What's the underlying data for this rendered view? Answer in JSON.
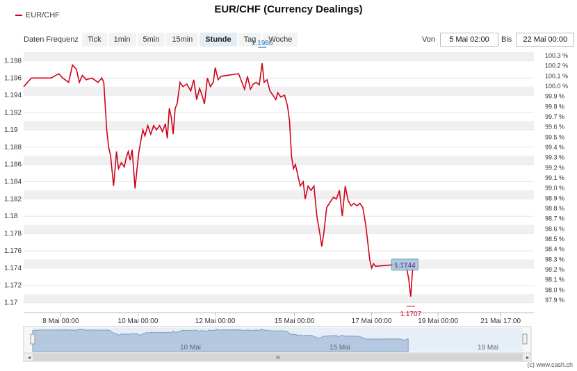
{
  "title": "EUR/CHF (Currency Dealings)",
  "legend": {
    "label": "EUR/CHF",
    "color": "#d0021b"
  },
  "frequency": {
    "label": "Daten Frequenz",
    "options": [
      "Tick",
      "1min",
      "5min",
      "15min",
      "Stunde",
      "Tag",
      "Woche"
    ],
    "active": "Stunde"
  },
  "range": {
    "from_label": "Von",
    "from_value": "5 Mai 02:00",
    "to_label": "Bis",
    "to_value": "22 Mai 00:00"
  },
  "copyright": "(c) www.cash.ch",
  "navigator": {
    "labels": [
      "10 Mai",
      "15 Mai",
      "19 Mai"
    ],
    "scroll_grip": "III"
  },
  "chart_data": {
    "type": "line",
    "title": "EUR/CHF (Currency Dealings)",
    "series": [
      {
        "name": "EUR/CHF",
        "color": "#d0021b",
        "points": [
          [
            0.0,
            1.195
          ],
          [
            0.4,
            1.196
          ],
          [
            0.8,
            1.196
          ],
          [
            1.4,
            1.196
          ],
          [
            1.8,
            1.1965
          ],
          [
            2.0,
            1.196
          ],
          [
            2.3,
            1.1955
          ],
          [
            2.5,
            1.1975
          ],
          [
            2.7,
            1.197
          ],
          [
            2.85,
            1.1955
          ],
          [
            3.0,
            1.1963
          ],
          [
            3.2,
            1.1958
          ],
          [
            3.5,
            1.196
          ],
          [
            3.8,
            1.1955
          ],
          [
            4.0,
            1.196
          ],
          [
            4.1,
            1.1955
          ],
          [
            4.25,
            1.19
          ],
          [
            4.35,
            1.188
          ],
          [
            4.45,
            1.187
          ],
          [
            4.6,
            1.1835
          ],
          [
            4.75,
            1.1875
          ],
          [
            4.85,
            1.1855
          ],
          [
            5.0,
            1.1862
          ],
          [
            5.15,
            1.1857
          ],
          [
            5.25,
            1.1868
          ],
          [
            5.35,
            1.1875
          ],
          [
            5.45,
            1.1865
          ],
          [
            5.55,
            1.1877
          ],
          [
            5.7,
            1.1832
          ],
          [
            5.8,
            1.1855
          ],
          [
            5.9,
            1.1875
          ],
          [
            6.0,
            1.1888
          ],
          [
            6.1,
            1.19
          ],
          [
            6.2,
            1.1893
          ],
          [
            6.35,
            1.1905
          ],
          [
            6.5,
            1.1895
          ],
          [
            6.65,
            1.1905
          ],
          [
            6.8,
            1.19
          ],
          [
            6.95,
            1.1905
          ],
          [
            7.1,
            1.1898
          ],
          [
            7.25,
            1.1907
          ],
          [
            7.35,
            1.189
          ],
          [
            7.45,
            1.1925
          ],
          [
            7.55,
            1.1915
          ],
          [
            7.65,
            1.1895
          ],
          [
            7.75,
            1.1925
          ],
          [
            7.85,
            1.193
          ],
          [
            8.0,
            1.1955
          ],
          [
            8.15,
            1.195
          ],
          [
            8.35,
            1.1953
          ],
          [
            8.55,
            1.1945
          ],
          [
            8.7,
            1.1958
          ],
          [
            8.85,
            1.1935
          ],
          [
            9.0,
            1.1948
          ],
          [
            9.1,
            1.1942
          ],
          [
            9.25,
            1.193
          ],
          [
            9.4,
            1.196
          ],
          [
            9.55,
            1.195
          ],
          [
            9.7,
            1.1955
          ],
          [
            9.8,
            1.1972
          ],
          [
            9.95,
            1.1958
          ],
          [
            10.1,
            1.1962
          ],
          [
            11.0,
            1.1965
          ],
          [
            11.3,
            1.1947
          ],
          [
            11.45,
            1.1962
          ],
          [
            11.6,
            1.1947
          ],
          [
            11.75,
            1.1953
          ],
          [
            11.9,
            1.1955
          ],
          [
            12.05,
            1.1952
          ],
          [
            12.2,
            1.1977
          ],
          [
            12.3,
            1.1955
          ],
          [
            12.45,
            1.1958
          ],
          [
            12.6,
            1.1945
          ],
          [
            12.75,
            1.194
          ],
          [
            12.9,
            1.1935
          ],
          [
            13.0,
            1.1943
          ],
          [
            13.15,
            1.1938
          ],
          [
            13.35,
            1.194
          ],
          [
            13.5,
            1.1927
          ],
          [
            13.6,
            1.191
          ],
          [
            13.7,
            1.187
          ],
          [
            13.8,
            1.1855
          ],
          [
            13.9,
            1.186
          ],
          [
            14.0,
            1.185
          ],
          [
            14.15,
            1.1835
          ],
          [
            14.3,
            1.184
          ],
          [
            14.4,
            1.182
          ],
          [
            14.55,
            1.1835
          ],
          [
            14.7,
            1.183
          ],
          [
            14.85,
            1.1835
          ],
          [
            15.0,
            1.18
          ],
          [
            15.15,
            1.178
          ],
          [
            15.25,
            1.1765
          ],
          [
            15.35,
            1.178
          ],
          [
            15.5,
            1.181
          ],
          [
            15.7,
            1.1817
          ],
          [
            15.85,
            1.1822
          ],
          [
            16.0,
            1.182
          ],
          [
            16.15,
            1.183
          ],
          [
            16.3,
            1.18
          ],
          [
            16.45,
            1.1835
          ],
          [
            16.6,
            1.1818
          ],
          [
            16.75,
            1.1812
          ],
          [
            16.9,
            1.1815
          ],
          [
            17.05,
            1.1812
          ],
          [
            17.2,
            1.1815
          ],
          [
            17.35,
            1.181
          ],
          [
            17.5,
            1.179
          ],
          [
            17.6,
            1.177
          ],
          [
            17.7,
            1.175
          ],
          [
            17.8,
            1.174
          ],
          [
            17.9,
            1.1745
          ],
          [
            18.0,
            1.1742
          ],
          [
            18.5,
            1.1743
          ],
          [
            19.0,
            1.1744
          ],
          [
            19.1,
            1.1742
          ],
          [
            19.3,
            1.1745
          ],
          [
            19.55,
            1.1745
          ],
          [
            19.7,
            1.1727
          ],
          [
            19.8,
            1.1707
          ],
          [
            19.9,
            1.174
          ],
          [
            20.0,
            1.1744
          ]
        ]
      }
    ],
    "x_ticks": [
      {
        "x": 1.9,
        "label": "8 Mai 00:00"
      },
      {
        "x": 5.85,
        "label": "10 Mai 00:00"
      },
      {
        "x": 9.8,
        "label": "12 Mai 00:00"
      },
      {
        "x": 13.85,
        "label": "15 Mai 00:00"
      },
      {
        "x": 17.8,
        "label": "17 Mai 00:00"
      },
      {
        "x": 21.2,
        "label": "19 Mai 00:00"
      },
      {
        "x": 24.4,
        "label": "21 Mai 17:00"
      }
    ],
    "xlim": [
      0,
      26.1
    ],
    "ylim": [
      1.169,
      1.1994
    ],
    "y_ticks": [
      1.17,
      1.172,
      1.174,
      1.176,
      1.178,
      1.18,
      1.182,
      1.184,
      1.186,
      1.188,
      1.19,
      1.192,
      1.194,
      1.196,
      1.198
    ],
    "y_tick_labels": [
      "1.17",
      "1.172",
      "1.174",
      "1.176",
      "1.178",
      "1.18",
      "1.182",
      "1.184",
      "1.186",
      "1.188",
      "1.19",
      "1.192",
      "1.194",
      "1.196",
      "1.198"
    ],
    "y2_tick_labels": [
      "100.3 %",
      "100.2 %",
      "100.1 %",
      "100.0 %",
      "99.9 %",
      "99.8 %",
      "99.7 %",
      "99.6 %",
      "99.5 %",
      "99.4 %",
      "99.3 %",
      "99.2 %",
      "99.1 %",
      "99.0 %",
      "98.9 %",
      "98.8 %",
      "98.7 %",
      "98.6 %",
      "98.5 %",
      "98.4 %",
      "98.3 %",
      "98.2 %",
      "98.1 %",
      "98.0 %",
      "97.9 %"
    ],
    "max_label": {
      "x": 12.2,
      "y": 1.1977,
      "text": "1.1986"
    },
    "min_label": {
      "x": 19.8,
      "y": 1.1707,
      "text": "1.1707"
    },
    "last_label": {
      "x": 19.5,
      "y": 1.1744,
      "text": "1.1744"
    },
    "grid": true
  }
}
